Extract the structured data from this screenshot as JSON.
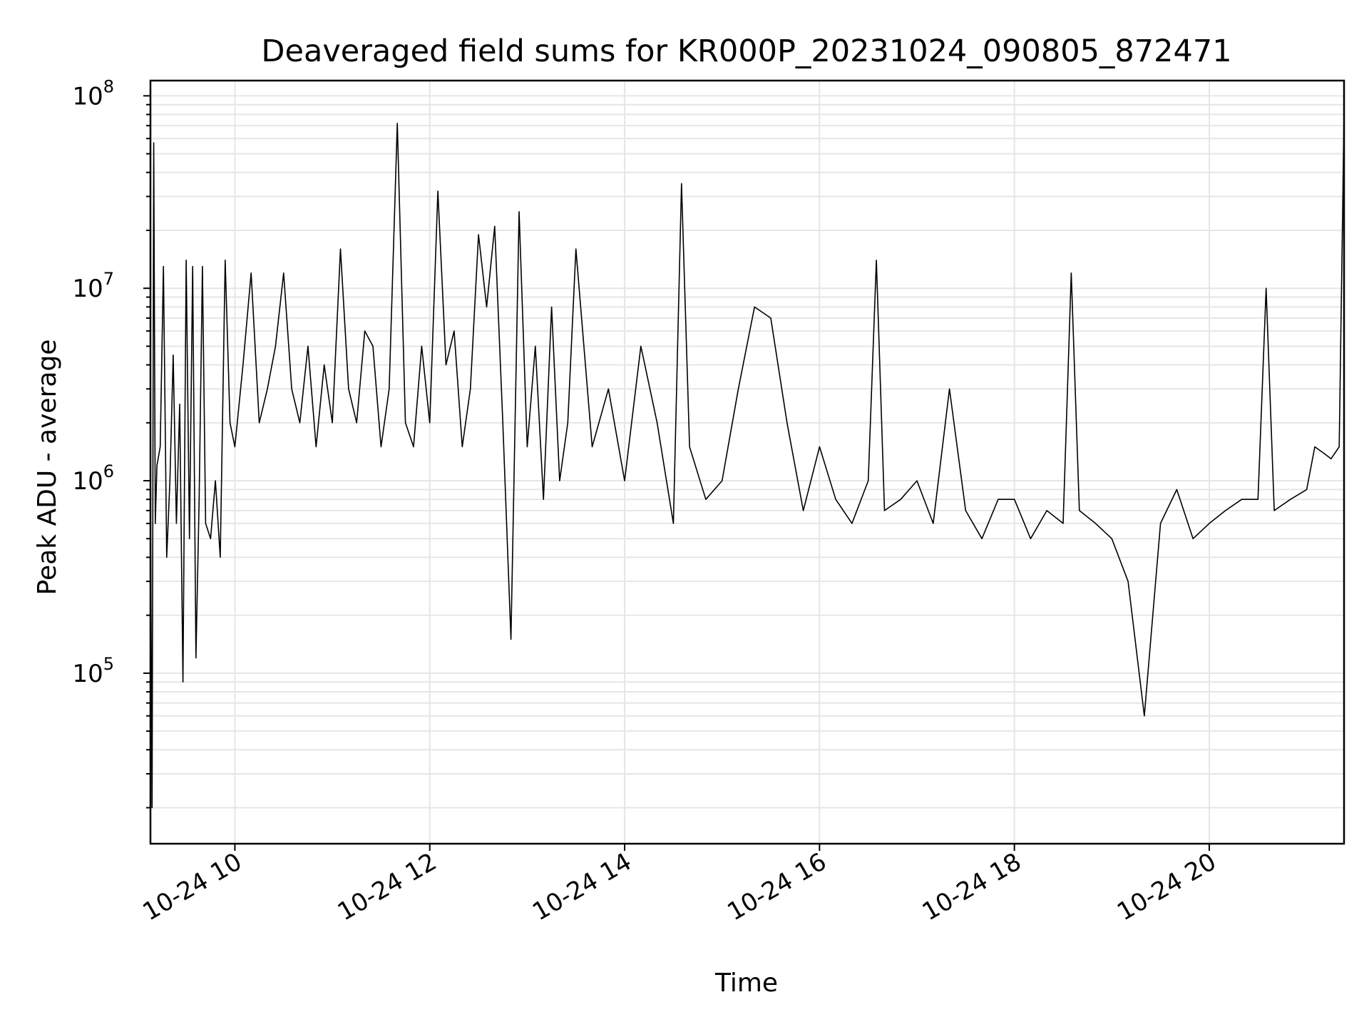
{
  "chart_data": {
    "type": "line",
    "title": "Deaveraged field sums for KR000P_20231024_090805_872471",
    "xlabel": "Time",
    "ylabel": "Peak ADU - average",
    "y_scale": "log",
    "ylim": [
      13000,
      120000000
    ],
    "xlim": [
      "10-24 09:08",
      "10-24 21:23"
    ],
    "grid": true,
    "line_color": "#000000",
    "grid_color": "#e6e6e6",
    "x_ticks": [
      {
        "value": "10-24 10:00",
        "label": "10-24 10"
      },
      {
        "value": "10-24 12:00",
        "label": "10-24 12"
      },
      {
        "value": "10-24 14:00",
        "label": "10-24 14"
      },
      {
        "value": "10-24 16:00",
        "label": "10-24 16"
      },
      {
        "value": "10-24 18:00",
        "label": "10-24 18"
      },
      {
        "value": "10-24 20:00",
        "label": "10-24 20"
      }
    ],
    "y_ticks": [
      {
        "value": 100000,
        "base": "10",
        "exp": "5"
      },
      {
        "value": 1000000,
        "base": "10",
        "exp": "6"
      },
      {
        "value": 10000000,
        "base": "10",
        "exp": "7"
      },
      {
        "value": 100000000,
        "base": "10",
        "exp": "8"
      }
    ],
    "series": [
      {
        "x": [
          "10-24 09:08",
          "10-24 09:09",
          "10-24 09:10",
          "10-24 09:11",
          "10-24 09:12",
          "10-24 09:14",
          "10-24 09:16",
          "10-24 09:18",
          "10-24 09:20",
          "10-24 09:22",
          "10-24 09:24",
          "10-24 09:26",
          "10-24 09:28",
          "10-24 09:30",
          "10-24 09:32",
          "10-24 09:34",
          "10-24 09:36",
          "10-24 09:38",
          "10-24 09:40",
          "10-24 09:42",
          "10-24 09:45",
          "10-24 09:48",
          "10-24 09:51",
          "10-24 09:54",
          "10-24 09:57",
          "10-24 10:00",
          "10-24 10:05",
          "10-24 10:10",
          "10-24 10:15",
          "10-24 10:20",
          "10-24 10:25",
          "10-24 10:30",
          "10-24 10:35",
          "10-24 10:40",
          "10-24 10:45",
          "10-24 10:50",
          "10-24 10:55",
          "10-24 11:00",
          "10-24 11:05",
          "10-24 11:10",
          "10-24 11:15",
          "10-24 11:20",
          "10-24 11:25",
          "10-24 11:30",
          "10-24 11:35",
          "10-24 11:40",
          "10-24 11:45",
          "10-24 11:50",
          "10-24 11:55",
          "10-24 12:00",
          "10-24 12:05",
          "10-24 12:10",
          "10-24 12:15",
          "10-24 12:20",
          "10-24 12:25",
          "10-24 12:30",
          "10-24 12:35",
          "10-24 12:40",
          "10-24 12:45",
          "10-24 12:50",
          "10-24 12:55",
          "10-24 13:00",
          "10-24 13:05",
          "10-24 13:10",
          "10-24 13:15",
          "10-24 13:20",
          "10-24 13:25",
          "10-24 13:30",
          "10-24 13:40",
          "10-24 13:50",
          "10-24 14:00",
          "10-24 14:10",
          "10-24 14:20",
          "10-24 14:30",
          "10-24 14:35",
          "10-24 14:40",
          "10-24 14:50",
          "10-24 15:00",
          "10-24 15:10",
          "10-24 15:20",
          "10-24 15:30",
          "10-24 15:40",
          "10-24 15:50",
          "10-24 16:00",
          "10-24 16:10",
          "10-24 16:20",
          "10-24 16:30",
          "10-24 16:35",
          "10-24 16:40",
          "10-24 16:50",
          "10-24 17:00",
          "10-24 17:10",
          "10-24 17:20",
          "10-24 17:30",
          "10-24 17:40",
          "10-24 17:50",
          "10-24 18:00",
          "10-24 18:10",
          "10-24 18:20",
          "10-24 18:30",
          "10-24 18:35",
          "10-24 18:40",
          "10-24 18:50",
          "10-24 19:00",
          "10-24 19:10",
          "10-24 19:20",
          "10-24 19:30",
          "10-24 19:40",
          "10-24 19:50",
          "10-24 20:00",
          "10-24 20:10",
          "10-24 20:20",
          "10-24 20:30",
          "10-24 20:35",
          "10-24 20:40",
          "10-24 20:50",
          "10-24 21:00",
          "10-24 21:05",
          "10-24 21:10",
          "10-24 21:15",
          "10-24 21:20",
          "10-24 21:23"
        ],
        "y": [
          800000,
          20000,
          57000000,
          600000,
          1200000,
          1500000,
          13000000,
          400000,
          1000000,
          4500000,
          600000,
          2500000,
          90000,
          14000000,
          500000,
          13000000,
          120000,
          800000,
          13000000,
          600000,
          500000,
          1000000,
          400000,
          14000000,
          2000000,
          1500000,
          4000000,
          12000000,
          2000000,
          3000000,
          5000000,
          12000000,
          3000000,
          2000000,
          5000000,
          1500000,
          4000000,
          2000000,
          16000000,
          3000000,
          2000000,
          6000000,
          5000000,
          1500000,
          3000000,
          72000000,
          2000000,
          1500000,
          5000000,
          2000000,
          32000000,
          4000000,
          6000000,
          1500000,
          3000000,
          19000000,
          8000000,
          21000000,
          2000000,
          150000,
          25000000,
          1500000,
          5000000,
          800000,
          8000000,
          1000000,
          2000000,
          16000000,
          1500000,
          3000000,
          1000000,
          5000000,
          2000000,
          600000,
          35000000,
          1500000,
          800000,
          1000000,
          3000000,
          8000000,
          7000000,
          2000000,
          700000,
          1500000,
          800000,
          600000,
          1000000,
          14000000,
          700000,
          800000,
          1000000,
          600000,
          3000000,
          700000,
          500000,
          800000,
          800000,
          500000,
          700000,
          600000,
          12000000,
          700000,
          600000,
          500000,
          300000,
          60000,
          600000,
          900000,
          500000,
          600000,
          700000,
          800000,
          800000,
          10000000,
          700000,
          800000,
          900000,
          1500000,
          1400000,
          1300000,
          1500000,
          80000000
        ]
      }
    ]
  }
}
